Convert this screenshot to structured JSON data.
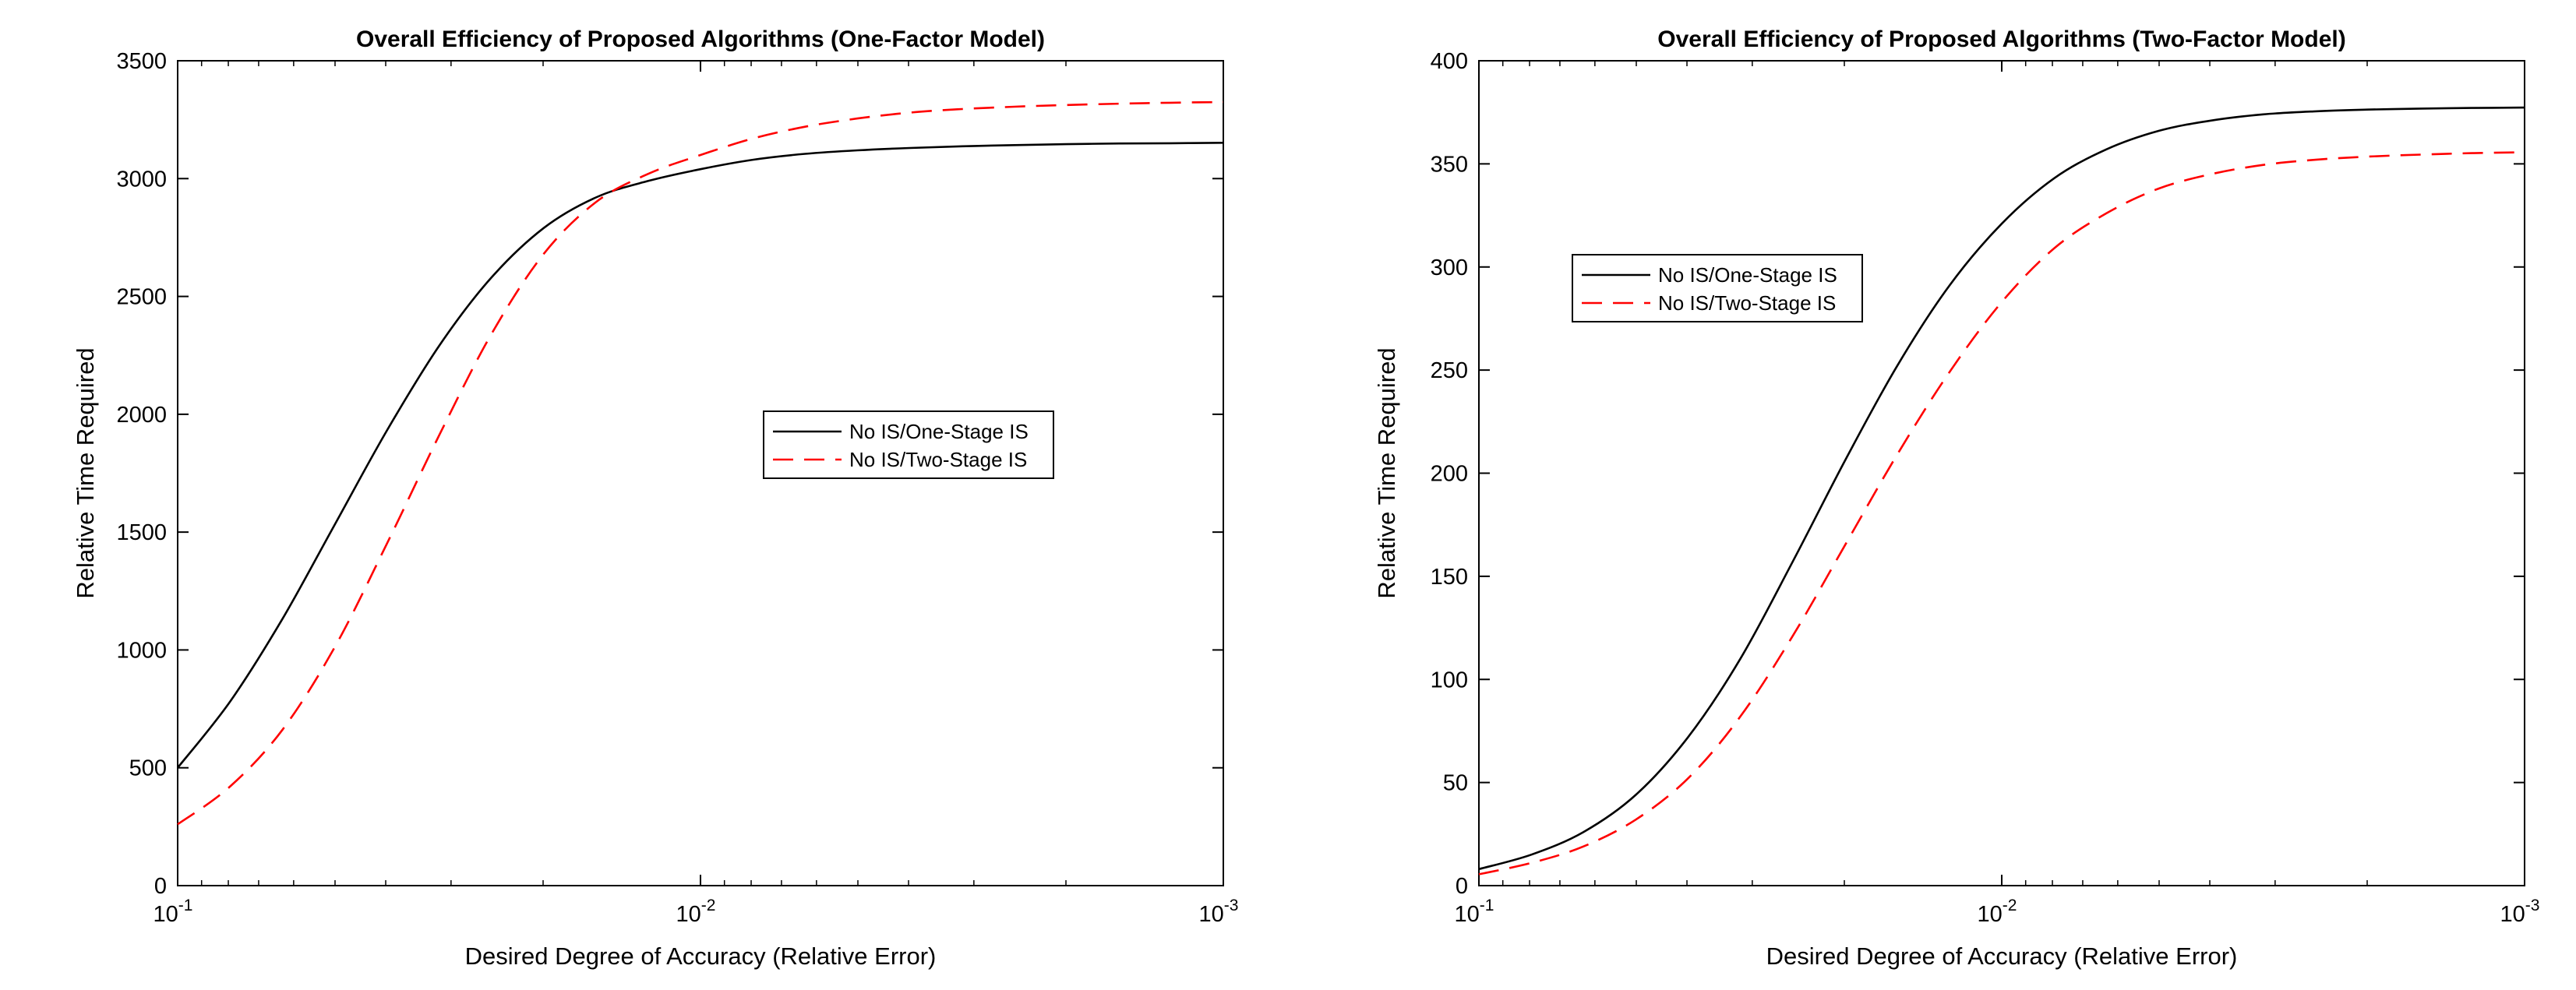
{
  "chart_data": [
    {
      "type": "line",
      "title": "Overall Efficiency of Proposed Algorithms (One-Factor Model)",
      "xlabel": "Desired Degree of Accuracy (Relative Error)",
      "ylabel": "Relative Time Required",
      "xscale": "log",
      "xdir": "reverse",
      "xlim": [
        0.1,
        0.001
      ],
      "ylim": [
        0,
        3500
      ],
      "xticks": [
        {
          "base": "10",
          "exp": "-1"
        },
        {
          "base": "10",
          "exp": "-2"
        },
        {
          "base": "10",
          "exp": "-3"
        }
      ],
      "yticks": [
        "0",
        "500",
        "1000",
        "1500",
        "2000",
        "2500",
        "3000",
        "3500"
      ],
      "legend_position": "center-right",
      "x": [
        0.1,
        0.07943,
        0.0631,
        0.05012,
        0.03981,
        0.03162,
        0.02512,
        0.01995,
        0.01585,
        0.01259,
        0.01,
        0.00794,
        0.00631,
        0.00501,
        0.00398,
        0.00316,
        0.00251,
        0.002,
        0.00158,
        0.00126,
        0.001
      ],
      "series": [
        {
          "name": "No IS/One-Stage IS",
          "color": "#000000",
          "dash": "solid",
          "values": [
            500,
            780,
            1130,
            1530,
            1930,
            2290,
            2580,
            2790,
            2920,
            2990,
            3040,
            3080,
            3105,
            3120,
            3130,
            3137,
            3142,
            3146,
            3149,
            3150,
            3152
          ]
        },
        {
          "name": "No IS/Two-Stage IS",
          "color": "#ff0000",
          "dash": "dashed",
          "values": [
            260,
            420,
            660,
            1010,
            1450,
            1910,
            2340,
            2680,
            2900,
            3020,
            3100,
            3170,
            3220,
            3255,
            3280,
            3295,
            3305,
            3312,
            3318,
            3322,
            3325
          ]
        }
      ]
    },
    {
      "type": "line",
      "title": "Overall Efficiency of Proposed Algorithms (Two-Factor Model)",
      "xlabel": "Desired Degree of Accuracy (Relative Error)",
      "ylabel": "Relative Time Required",
      "xscale": "log",
      "xdir": "reverse",
      "xlim": [
        0.1,
        0.001
      ],
      "ylim": [
        0,
        400
      ],
      "xticks": [
        {
          "base": "10",
          "exp": "-1"
        },
        {
          "base": "10",
          "exp": "-2"
        },
        {
          "base": "10",
          "exp": "-3"
        }
      ],
      "yticks": [
        "0",
        "50",
        "100",
        "150",
        "200",
        "250",
        "300",
        "350",
        "400"
      ],
      "legend_position": "upper-left",
      "x": [
        0.1,
        0.07943,
        0.0631,
        0.05012,
        0.03981,
        0.03162,
        0.02512,
        0.01995,
        0.01585,
        0.01259,
        0.01,
        0.00794,
        0.00631,
        0.00501,
        0.00398,
        0.00316,
        0.00251,
        0.002,
        0.00158,
        0.00126,
        0.001
      ],
      "series": [
        {
          "name": "No IS/One-Stage IS",
          "color": "#000000",
          "dash": "solid",
          "values": [
            8,
            15,
            26,
            44,
            72,
            110,
            157,
            206,
            252,
            291,
            321,
            343,
            357,
            366,
            371,
            374,
            375.5,
            376.3,
            376.8,
            377.1,
            377.3
          ]
        },
        {
          "name": "No IS/Two-Stage IS",
          "color": "#ff0000",
          "dash": "dashed",
          "values": [
            5.5,
            11,
            19,
            32,
            52,
            82,
            121,
            165,
            209,
            249,
            283,
            309,
            326,
            338,
            345,
            349.5,
            352,
            353.5,
            354.5,
            355.2,
            355.6
          ]
        }
      ]
    }
  ]
}
